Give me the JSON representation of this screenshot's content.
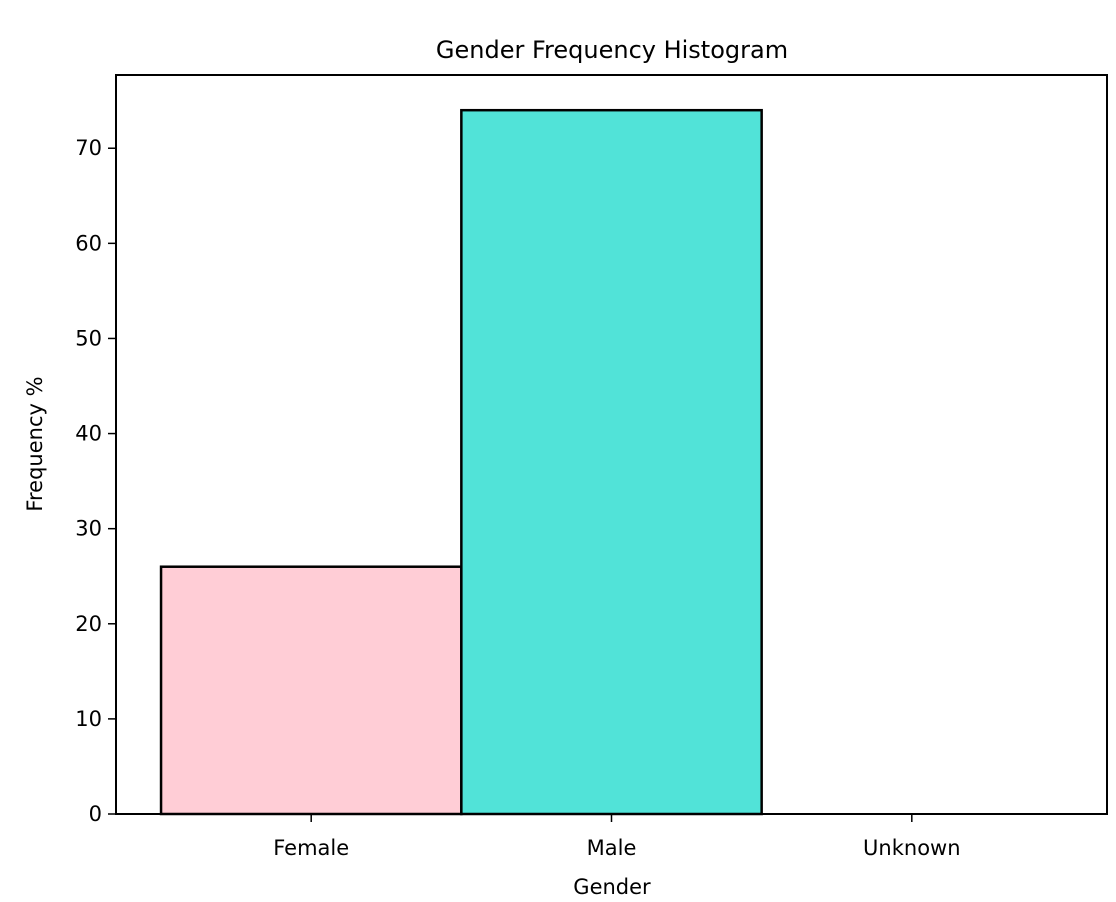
{
  "chart_data": {
    "type": "bar",
    "title": "Gender Frequency Histogram",
    "xlabel": "Gender",
    "ylabel": "Frequency %",
    "categories": [
      "Female",
      "Male",
      "Unknown"
    ],
    "values": [
      26,
      74,
      0
    ],
    "colors": [
      "#ffcdd6",
      "#51e3d8",
      "#ffffff"
    ],
    "edge_color": "#000000",
    "ylim": [
      0,
      77.7
    ],
    "yticks": [
      0,
      10,
      20,
      30,
      40,
      50,
      60,
      70
    ],
    "grid": false,
    "legend": "none"
  }
}
